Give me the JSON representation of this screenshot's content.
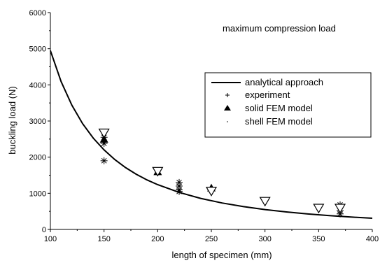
{
  "chart_data": {
    "type": "scatter",
    "title": "",
    "annotation": "maximum compression load",
    "xlabel": "length of specimen (mm)",
    "ylabel": "buckling load (N)",
    "xlim": [
      100,
      400
    ],
    "ylim": [
      0,
      6000
    ],
    "x_ticks": [
      100,
      150,
      200,
      250,
      300,
      350,
      400
    ],
    "y_ticks": [
      0,
      1000,
      2000,
      3000,
      4000,
      5000,
      6000
    ],
    "grid": false,
    "legend_position": "center-right",
    "series": [
      {
        "name": "analytical approach",
        "kind": "line",
        "x": [
          100,
          110,
          120,
          130,
          140,
          150,
          160,
          170,
          180,
          190,
          200,
          220,
          240,
          260,
          280,
          300,
          320,
          340,
          360,
          380,
          400
        ],
        "y": [
          4950,
          4091,
          3438,
          2929,
          2526,
          2200,
          1934,
          1713,
          1528,
          1371,
          1238,
          1023,
          859,
          732,
          631,
          550,
          483,
          428,
          382,
          343,
          309
        ]
      },
      {
        "name": "experiment",
        "kind": "asterisk",
        "x": [
          150,
          150,
          150,
          220,
          220,
          220,
          220,
          370,
          370,
          370
        ],
        "y": [
          2550,
          2380,
          1900,
          1300,
          1200,
          1100,
          1050,
          680,
          520,
          430
        ]
      },
      {
        "name": "solid FEM model",
        "kind": "triangle-up",
        "x": [
          150,
          200,
          250
        ],
        "y": [
          2500,
          1600,
          1150
        ]
      },
      {
        "name": "shell FEM model",
        "kind": "triangle-down",
        "x": [
          150,
          200,
          250,
          300,
          350,
          370
        ],
        "y": [
          2680,
          1620,
          1070,
          790,
          600,
          600
        ]
      }
    ]
  }
}
